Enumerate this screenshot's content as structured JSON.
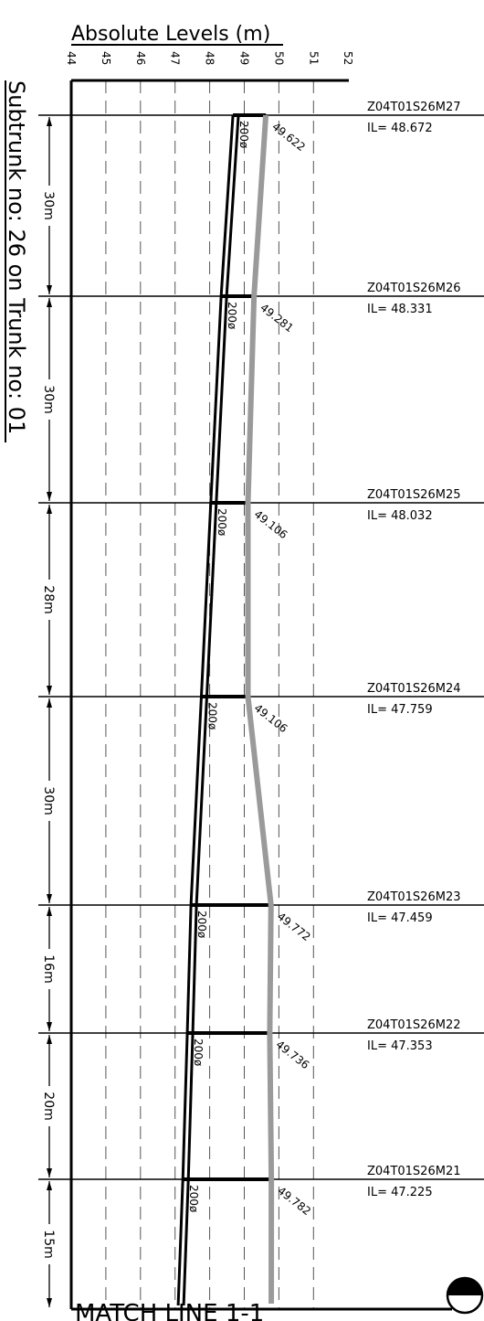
{
  "header": {
    "title": "Absolute Levels (m)",
    "scale_ticks": [
      "44",
      "45",
      "46",
      "47",
      "48",
      "49",
      "50",
      "51",
      "52"
    ]
  },
  "side_title": "Subtrunk no: 26 on Trunk no: 01",
  "footer": {
    "match_line": "MATCH LINE 1-1"
  },
  "colors": {
    "ink": "#000000",
    "ground_line": "#9a9a9a",
    "grid": "#555555"
  },
  "chart_data": {
    "type": "line",
    "title": "Absolute Levels (m)",
    "x_range": [
      44,
      52
    ],
    "x_ticks": [
      44,
      45,
      46,
      47,
      48,
      49,
      50,
      51,
      52
    ],
    "grid_vertical": true,
    "grid_style": "dashed",
    "series": [
      {
        "values_key": "ground_level",
        "style": "grey thick line"
      },
      {
        "values_key": "invert_level",
        "style": "black double line"
      }
    ],
    "manholes": [
      {
        "id": "Z04T01S26M27",
        "il_label": "IL= 48.672",
        "invert": 48.672,
        "ground_label": "49.622",
        "ground": 49.622,
        "pipe": "200ø"
      },
      {
        "id": "Z04T01S26M26",
        "il_label": "IL= 48.331",
        "invert": 48.331,
        "ground_label": "49.281",
        "ground": 49.281,
        "pipe": "200ø"
      },
      {
        "id": "Z04T01S26M25",
        "il_label": "IL= 48.032",
        "invert": 48.032,
        "ground_label": "49.106",
        "ground": 49.106,
        "pipe": "200ø"
      },
      {
        "id": "Z04T01S26M24",
        "il_label": "IL= 47.759",
        "invert": 47.759,
        "ground_label": "49.106",
        "ground": 49.106,
        "pipe": "200ø"
      },
      {
        "id": "Z04T01S26M23",
        "il_label": "IL= 47.459",
        "invert": 47.459,
        "ground_label": "49.772",
        "ground": 49.772,
        "pipe": "200ø"
      },
      {
        "id": "Z04T01S26M22",
        "il_label": "IL= 47.353",
        "invert": 47.353,
        "ground_label": "49.736",
        "ground": 49.736,
        "pipe": "200ø"
      },
      {
        "id": "Z04T01S26M21",
        "il_label": "IL= 47.225",
        "invert": 47.225,
        "ground_label": "49.782",
        "ground": 49.782,
        "pipe": "200ø"
      }
    ],
    "segment_lengths": [
      {
        "label": "30m",
        "length_m": 30
      },
      {
        "label": "30m",
        "length_m": 30
      },
      {
        "label": "28m",
        "length_m": 28
      },
      {
        "label": "30m",
        "length_m": 30
      },
      {
        "label": "16m",
        "length_m": 16
      },
      {
        "label": "20m",
        "length_m": 20
      },
      {
        "label": "15m",
        "length_m": 15
      }
    ],
    "end_levels": {
      "invert": 47.09,
      "ground": 49.78
    }
  }
}
